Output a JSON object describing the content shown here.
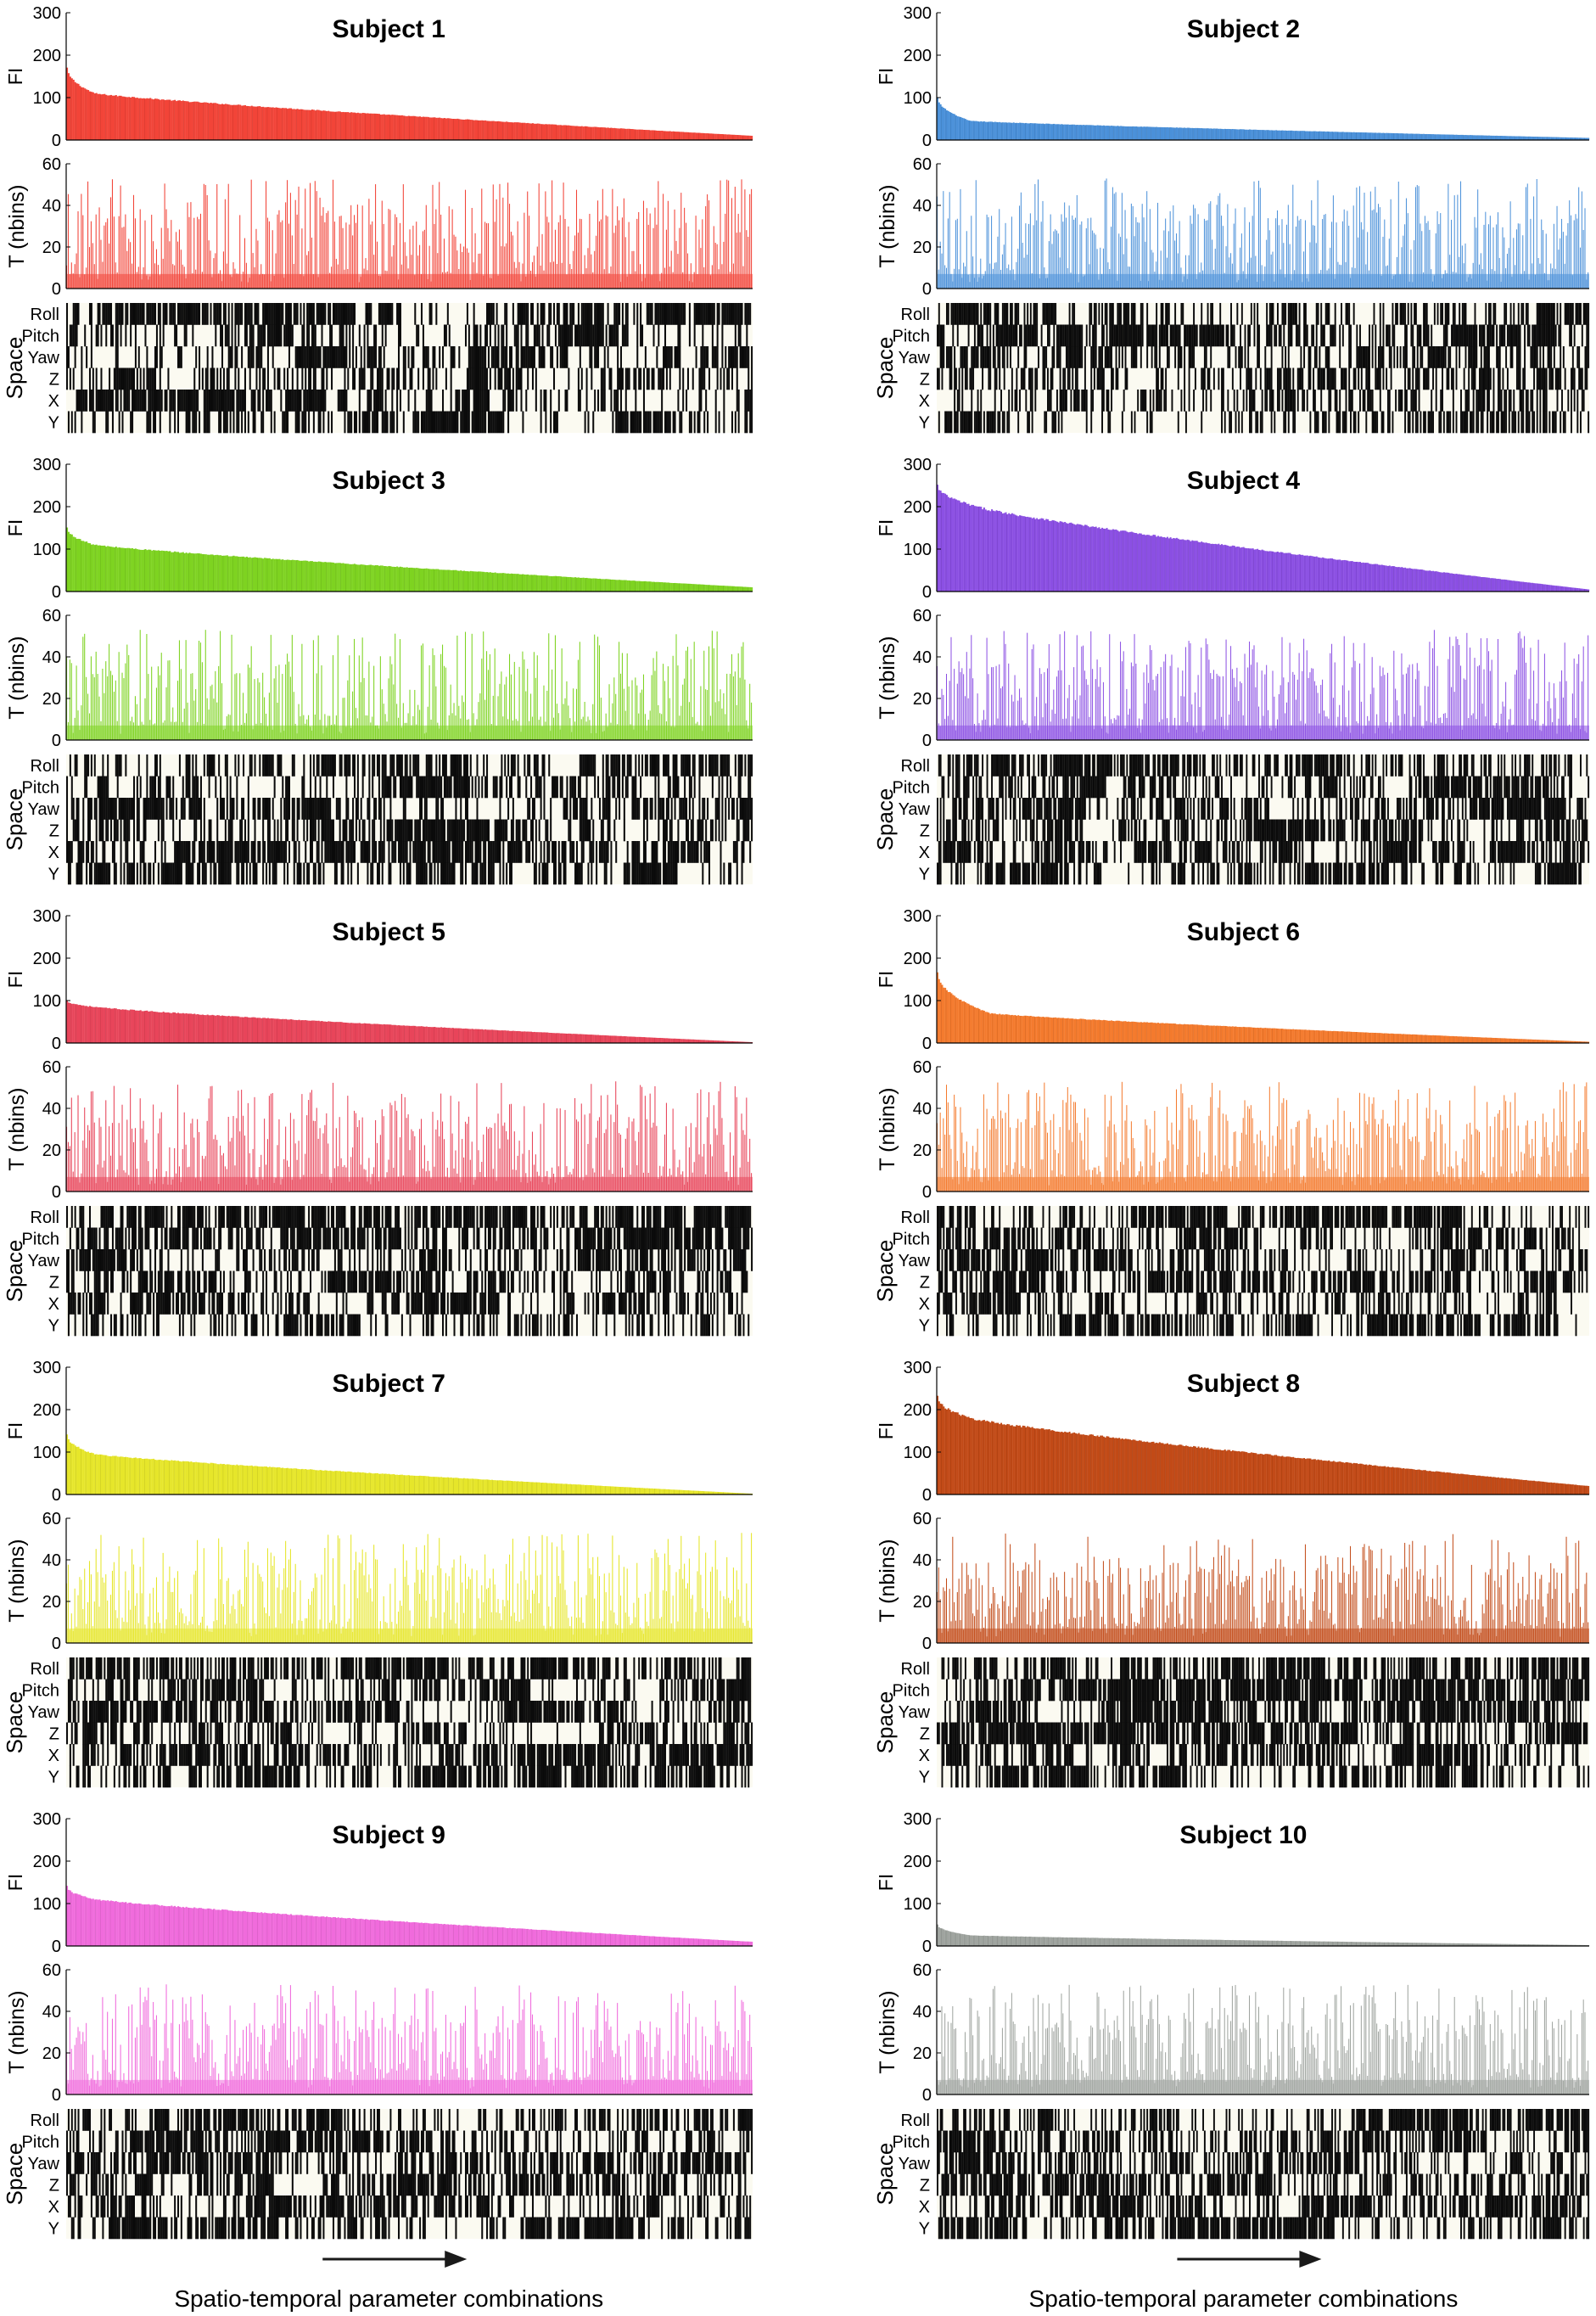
{
  "footer": {
    "xlabel": "Spatio-temporal parameter combinations"
  },
  "chart_data": [
    {
      "type": "bar",
      "title": "Subject 1",
      "color": "#f24438",
      "fi": {
        "ylabel": "FI",
        "ylim": [
          0,
          300
        ],
        "yticks": [
          0,
          100,
          200,
          300
        ],
        "start": 170,
        "end": 10,
        "knee": 110,
        "knee_frac": 0.04
      },
      "t": {
        "ylabel": "T (nbins)",
        "ylim": [
          0,
          60
        ],
        "yticks": [
          0,
          20,
          40,
          60
        ],
        "max": 53
      },
      "space": {
        "ylabel": "Space",
        "rows": [
          "Roll",
          "Pitch",
          "Yaw",
          "Z",
          "X",
          "Y"
        ]
      }
    },
    {
      "type": "bar",
      "title": "Subject 2",
      "color": "#4a90d9",
      "fi": {
        "ylabel": "FI",
        "ylim": [
          0,
          300
        ],
        "yticks": [
          0,
          100,
          200,
          300
        ],
        "start": 100,
        "end": 5,
        "knee": 45,
        "knee_frac": 0.05
      },
      "t": {
        "ylabel": "T (nbins)",
        "ylim": [
          0,
          60
        ],
        "yticks": [
          0,
          20,
          40,
          60
        ],
        "max": 53
      },
      "space": {
        "ylabel": "Space",
        "rows": [
          "Roll",
          "Pitch",
          "Yaw",
          "Z",
          "X",
          "Y"
        ]
      }
    },
    {
      "type": "bar",
      "title": "Subject 3",
      "color": "#7ed321",
      "fi": {
        "ylabel": "FI",
        "ylim": [
          0,
          300
        ],
        "yticks": [
          0,
          100,
          200,
          300
        ],
        "start": 150,
        "end": 10,
        "knee": 110,
        "knee_frac": 0.04
      },
      "t": {
        "ylabel": "T (nbins)",
        "ylim": [
          0,
          60
        ],
        "yticks": [
          0,
          20,
          40,
          60
        ],
        "max": 53
      },
      "space": {
        "ylabel": "Space",
        "rows": [
          "Roll",
          "Pitch",
          "Yaw",
          "Z",
          "X",
          "Y"
        ]
      }
    },
    {
      "type": "bar",
      "title": "Subject 4",
      "color": "#8b4fe3",
      "fi": {
        "ylabel": "FI",
        "ylim": [
          0,
          300
        ],
        "yticks": [
          0,
          100,
          200,
          300
        ],
        "start": 250,
        "end": 5,
        "knee": 200,
        "knee_frac": 0.06
      },
      "t": {
        "ylabel": "T (nbins)",
        "ylim": [
          0,
          60
        ],
        "yticks": [
          0,
          20,
          40,
          60
        ],
        "max": 53
      },
      "space": {
        "ylabel": "Space",
        "rows": [
          "Roll",
          "Pitch",
          "Yaw",
          "Z",
          "X",
          "Y"
        ]
      }
    },
    {
      "type": "bar",
      "title": "Subject 5",
      "color": "#e8455a",
      "fi": {
        "ylabel": "FI",
        "ylim": [
          0,
          300
        ],
        "yticks": [
          0,
          100,
          200,
          300
        ],
        "start": 100,
        "end": 2,
        "knee": 85,
        "knee_frac": 0.04
      },
      "t": {
        "ylabel": "T (nbins)",
        "ylim": [
          0,
          60
        ],
        "yticks": [
          0,
          20,
          40,
          60
        ],
        "max": 53
      },
      "space": {
        "ylabel": "Space",
        "rows": [
          "Roll",
          "Pitch",
          "Yaw",
          "Z",
          "X",
          "Y"
        ]
      }
    },
    {
      "type": "bar",
      "title": "Subject 6",
      "color": "#f47a2d",
      "fi": {
        "ylabel": "FI",
        "ylim": [
          0,
          300
        ],
        "yticks": [
          0,
          100,
          200,
          300
        ],
        "start": 165,
        "end": 3,
        "knee": 70,
        "knee_frac": 0.08
      },
      "t": {
        "ylabel": "T (nbins)",
        "ylim": [
          0,
          60
        ],
        "yticks": [
          0,
          20,
          40,
          60
        ],
        "max": 53
      },
      "space": {
        "ylabel": "Space",
        "rows": [
          "Roll",
          "Pitch",
          "Yaw",
          "Z",
          "X",
          "Y"
        ]
      }
    },
    {
      "type": "bar",
      "title": "Subject 7",
      "color": "#e6e62a",
      "fi": {
        "ylabel": "FI",
        "ylim": [
          0,
          300
        ],
        "yticks": [
          0,
          100,
          200,
          300
        ],
        "start": 140,
        "end": 2,
        "knee": 95,
        "knee_frac": 0.04
      },
      "t": {
        "ylabel": "T (nbins)",
        "ylim": [
          0,
          60
        ],
        "yticks": [
          0,
          20,
          40,
          60
        ],
        "max": 53
      },
      "space": {
        "ylabel": "Space",
        "rows": [
          "Roll",
          "Pitch",
          "Yaw",
          "Z",
          "X",
          "Y"
        ]
      }
    },
    {
      "type": "bar",
      "title": "Subject 8",
      "color": "#c24a17",
      "fi": {
        "ylabel": "FI",
        "ylim": [
          0,
          300
        ],
        "yticks": [
          0,
          100,
          200,
          300
        ],
        "start": 230,
        "end": 20,
        "knee": 180,
        "knee_frac": 0.05
      },
      "t": {
        "ylabel": "T (nbins)",
        "ylim": [
          0,
          60
        ],
        "yticks": [
          0,
          20,
          40,
          60
        ],
        "max": 53
      },
      "space": {
        "ylabel": "Space",
        "rows": [
          "Roll",
          "Pitch",
          "Yaw",
          "Z",
          "X",
          "Y"
        ]
      }
    },
    {
      "type": "bar",
      "title": "Subject 9",
      "color": "#f06bdc",
      "fi": {
        "ylabel": "FI",
        "ylim": [
          0,
          300
        ],
        "yticks": [
          0,
          100,
          200,
          300
        ],
        "start": 140,
        "end": 10,
        "knee": 110,
        "knee_frac": 0.04
      },
      "t": {
        "ylabel": "T (nbins)",
        "ylim": [
          0,
          60
        ],
        "yticks": [
          0,
          20,
          40,
          60
        ],
        "max": 53
      },
      "space": {
        "ylabel": "Space",
        "rows": [
          "Roll",
          "Pitch",
          "Yaw",
          "Z",
          "X",
          "Y"
        ]
      }
    },
    {
      "type": "bar",
      "title": "Subject 10",
      "color": "#9ea39e",
      "fi": {
        "ylabel": "FI",
        "ylim": [
          0,
          300
        ],
        "yticks": [
          0,
          100,
          200,
          300
        ],
        "start": 50,
        "end": 2,
        "knee": 25,
        "knee_frac": 0.05
      },
      "t": {
        "ylabel": "T (nbins)",
        "ylim": [
          0,
          60
        ],
        "yticks": [
          0,
          20,
          40,
          60
        ],
        "max": 53
      },
      "space": {
        "ylabel": "Space",
        "rows": [
          "Roll",
          "Pitch",
          "Yaw",
          "Z",
          "X",
          "Y"
        ]
      }
    }
  ]
}
